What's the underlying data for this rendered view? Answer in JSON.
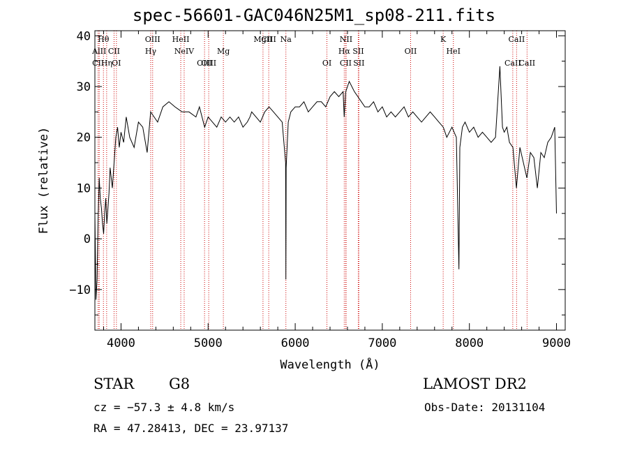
{
  "header": {
    "title": "spec-56601-GAC046N25M1_sp08-211.fits"
  },
  "info": {
    "object_class": "STAR",
    "subclass": "G8",
    "survey": "LAMOST DR2",
    "cz_text": "cz = −57.3 ± 4.8 km/s",
    "obs_date_text": "Obs-Date: 20131104",
    "radec_text": "RA =  47.28413, DEC =  23.97137"
  },
  "chart_data": {
    "type": "line",
    "title": "spec-56601-GAC046N25M1_sp08-211.fits",
    "xlabel": "Wavelength (Å)",
    "ylabel": "Flux (relative)",
    "xlim": [
      3700,
      9100
    ],
    "ylim": [
      -18,
      41
    ],
    "xticks": [
      4000,
      5000,
      6000,
      7000,
      8000,
      9000
    ],
    "yticks": [
      -10,
      0,
      10,
      20,
      30,
      40
    ],
    "grid": false,
    "line_color": "#000000",
    "marker_color": "#cc0000",
    "spectral_lines": [
      {
        "label": "Hθ",
        "wavelength": 3798,
        "row": 0
      },
      {
        "label": "AlII",
        "wavelength": 3750,
        "row": 1
      },
      {
        "label": "CII",
        "wavelength": 3920,
        "row": 1
      },
      {
        "label": "CII",
        "wavelength": 3737,
        "row": 2
      },
      {
        "label": "Hη",
        "wavelength": 3835,
        "row": 2
      },
      {
        "label": "OI",
        "wavelength": 3947,
        "row": 2
      },
      {
        "label": "OIII",
        "wavelength": 4363,
        "row": 0
      },
      {
        "label": "Hγ",
        "wavelength": 4341,
        "row": 1
      },
      {
        "label": "HeII",
        "wavelength": 4686,
        "row": 0
      },
      {
        "label": "NeIV",
        "wavelength": 4725,
        "row": 1
      },
      {
        "label": "Mg",
        "wavelength": 5175,
        "row": 1
      },
      {
        "label": "OIII",
        "wavelength": 4959,
        "row": 2
      },
      {
        "label": "OIII",
        "wavelength": 5007,
        "row": 2
      },
      {
        "label": "MgII",
        "wavelength": 5630,
        "row": 0
      },
      {
        "label": "CIII",
        "wavelength": 5696,
        "row": 0
      },
      {
        "label": "Na",
        "wavelength": 5893,
        "row": 0
      },
      {
        "label": "NII",
        "wavelength": 6584,
        "row": 0
      },
      {
        "label": "Hα",
        "wavelength": 6563,
        "row": 1
      },
      {
        "label": "SII",
        "wavelength": 6724,
        "row": 1
      },
      {
        "label": "OI",
        "wavelength": 6364,
        "row": 2
      },
      {
        "label": "SII",
        "wavelength": 6731,
        "row": 2
      },
      {
        "label": "CII",
        "wavelength": 6580,
        "row": 2
      },
      {
        "label": "OII",
        "wavelength": 7325,
        "row": 1
      },
      {
        "label": "K",
        "wavelength": 7699,
        "row": 0
      },
      {
        "label": "HeI",
        "wavelength": 7816,
        "row": 1
      },
      {
        "label": "CaII",
        "wavelength": 8542,
        "row": 0
      },
      {
        "label": "CaII",
        "wavelength": 8498,
        "row": 2
      },
      {
        "label": "CaII",
        "wavelength": 8662,
        "row": 2
      }
    ],
    "series": [
      {
        "x": [
          3700,
          3712,
          3725,
          3737,
          3750,
          3762,
          3775,
          3787,
          3800,
          3812,
          3825,
          3837,
          3850,
          3862,
          3875,
          3900,
          3920,
          3940,
          3960,
          3980,
          4000,
          4030,
          4060,
          4100,
          4150,
          4200,
          4250,
          4300,
          4340,
          4380,
          4420,
          4480,
          4550,
          4620,
          4700,
          4780,
          4860,
          4900,
          4960,
          5000,
          5050,
          5100,
          5150,
          5200,
          5250,
          5300,
          5350,
          5400,
          5450,
          5480,
          5500,
          5550,
          5600,
          5650,
          5700,
          5750,
          5800,
          5850,
          5890,
          5893,
          5896,
          5920,
          5950,
          6000,
          6050,
          6100,
          6150,
          6200,
          6250,
          6300,
          6350,
          6400,
          6450,
          6500,
          6550,
          6563,
          6580,
          6620,
          6680,
          6720,
          6760,
          6800,
          6850,
          6900,
          6950,
          7000,
          7050,
          7100,
          7150,
          7200,
          7250,
          7300,
          7350,
          7400,
          7450,
          7500,
          7550,
          7600,
          7650,
          7700,
          7740,
          7800,
          7850,
          7880,
          7890,
          7920,
          7950,
          8000,
          8050,
          8100,
          8150,
          8200,
          8250,
          8300,
          8350,
          8380,
          8400,
          8430,
          8460,
          8500,
          8540,
          8580,
          8620,
          8660,
          8700,
          8740,
          8780,
          8820,
          8860,
          8900,
          8940,
          8980,
          9000
        ],
        "values": [
          5,
          -12,
          -8,
          4,
          12,
          8,
          6,
          3,
          1,
          5,
          8,
          3,
          6,
          9,
          14,
          10,
          15,
          20,
          22,
          18,
          21,
          19,
          24,
          20,
          18,
          23,
          22,
          17,
          25,
          24,
          23,
          26,
          27,
          26,
          25,
          25,
          24,
          26,
          22,
          24,
          23,
          22,
          24,
          23,
          24,
          23,
          24,
          22,
          23,
          24,
          25,
          24,
          23,
          25,
          26,
          25,
          24,
          23,
          15,
          -8,
          14,
          23,
          25,
          26,
          26,
          27,
          25,
          26,
          27,
          27,
          26,
          28,
          29,
          28,
          29,
          24,
          29,
          31,
          29,
          28,
          27,
          26,
          26,
          27,
          25,
          26,
          24,
          25,
          24,
          25,
          26,
          24,
          25,
          24,
          23,
          24,
          25,
          24,
          23,
          22,
          20,
          22,
          20,
          -6,
          18,
          22,
          23,
          21,
          22,
          20,
          21,
          20,
          19,
          20,
          34,
          22,
          21,
          22,
          19,
          18,
          10,
          18,
          15,
          12,
          17,
          16,
          10,
          17,
          16,
          19,
          20,
          22,
          5
        ]
      }
    ]
  }
}
